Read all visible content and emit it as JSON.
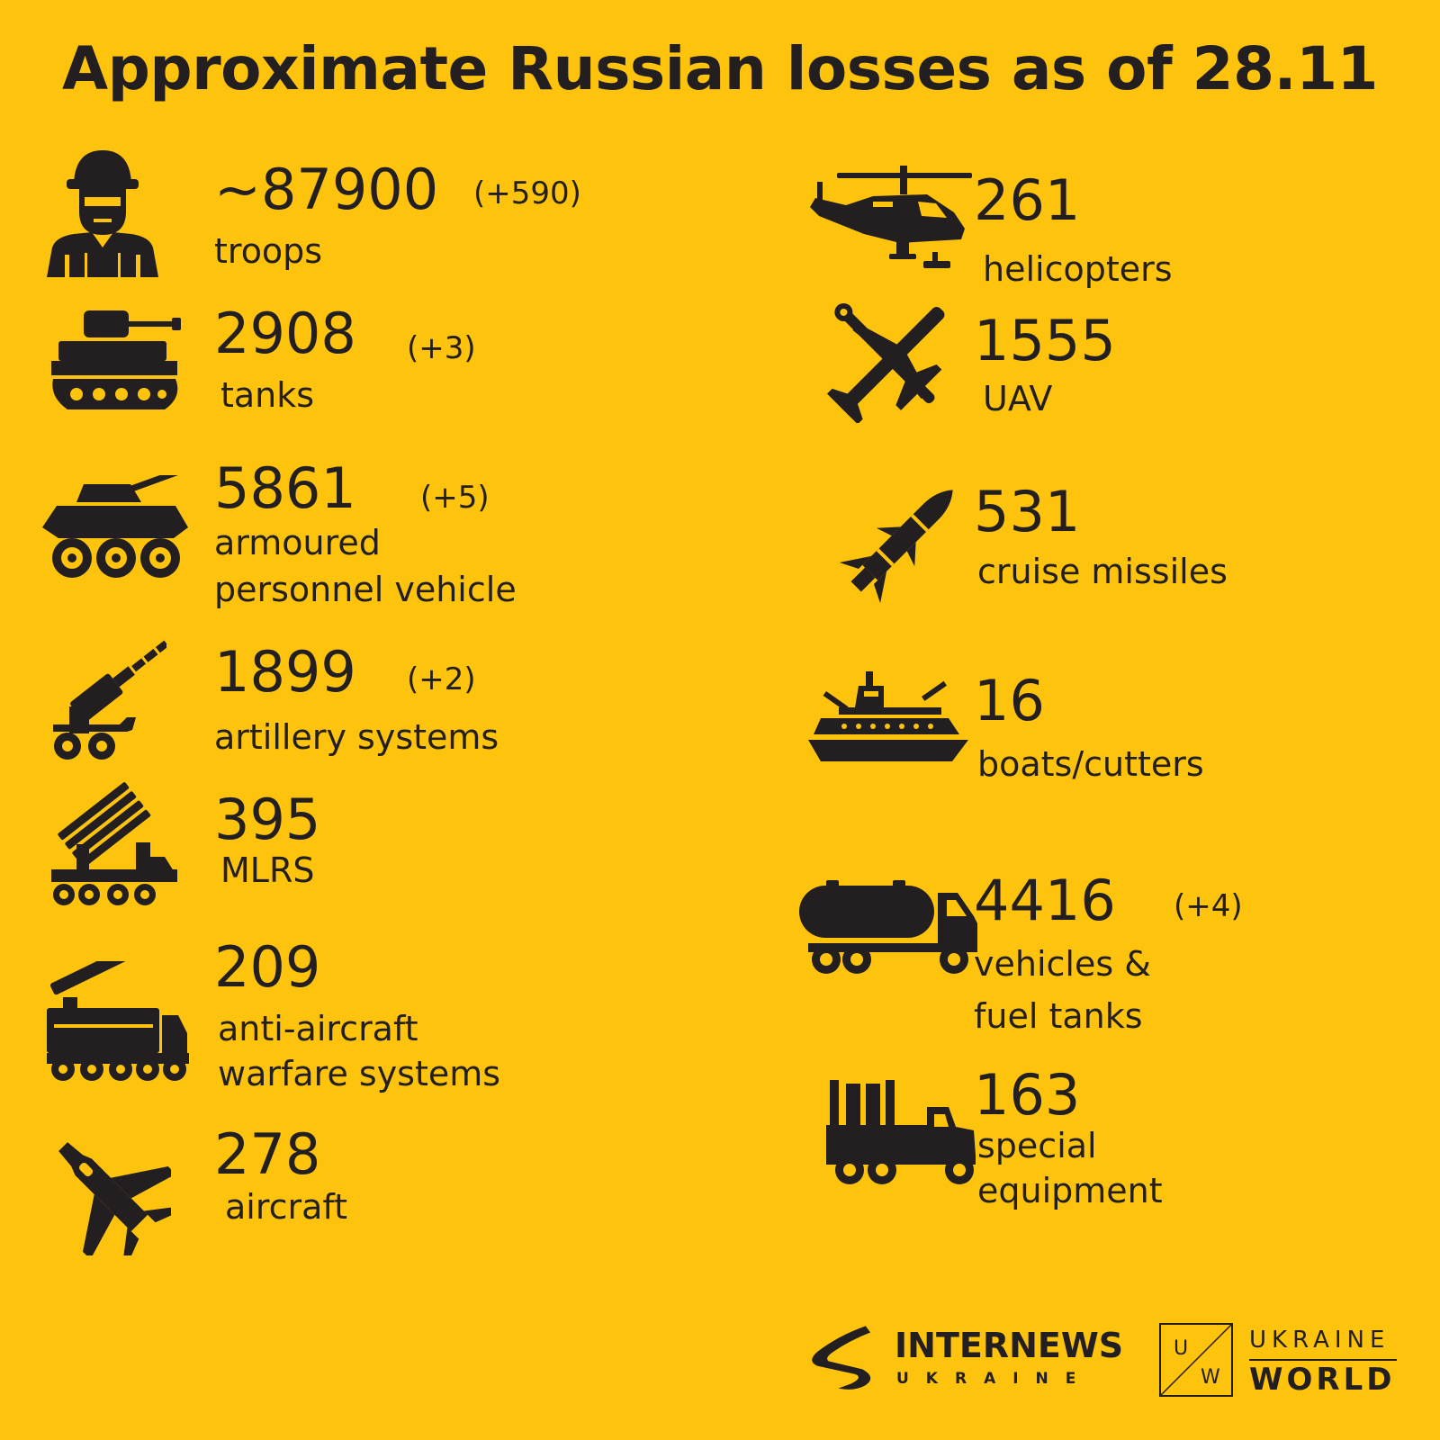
{
  "title": "Approximate Russian losses as of 28.11",
  "colors": {
    "background": "#FEC30C",
    "ink": "#231f20"
  },
  "items": [
    {
      "icon": "soldier-icon",
      "value": "~87900",
      "delta": "(+590)",
      "label": "troops"
    },
    {
      "icon": "tank-icon",
      "value": "2908",
      "delta": "(+3)",
      "label": "tanks"
    },
    {
      "icon": "apc-icon",
      "value": "5861",
      "delta": "(+5)",
      "label_line1": "armoured",
      "label_line2": "personnel vehicle"
    },
    {
      "icon": "artillery-icon",
      "value": "1899",
      "delta": "(+2)",
      "label": "artillery systems"
    },
    {
      "icon": "mlrs-icon",
      "value": "395",
      "label": "MLRS"
    },
    {
      "icon": "anti-aircraft-icon",
      "value": "209",
      "label_line1": "anti-aircraft",
      "label_line2": "warfare systems"
    },
    {
      "icon": "aircraft-icon",
      "value": "278",
      "label": "aircraft"
    },
    {
      "icon": "helicopter-icon",
      "value": "261",
      "label": "helicopters"
    },
    {
      "icon": "uav-icon",
      "value": "1555",
      "label": "UAV"
    },
    {
      "icon": "missile-icon",
      "value": "531",
      "label": "cruise missiles"
    },
    {
      "icon": "boat-icon",
      "value": "16",
      "label": "boats/cutters"
    },
    {
      "icon": "fuel-truck-icon",
      "value": "4416",
      "delta": "(+4)",
      "label_line1": "vehicles &",
      "label_line2": "fuel tanks"
    },
    {
      "icon": "special-equipment-icon",
      "value": "163",
      "label_line1": "special",
      "label_line2": "equipment"
    }
  ],
  "logos": {
    "internews": {
      "main": "INTERNEWS",
      "sub": "UKRAINE"
    },
    "ukraine_world": {
      "box_top": "U",
      "box_bottom": "W",
      "top": "UKRAINE",
      "bottom": "WORLD"
    }
  }
}
